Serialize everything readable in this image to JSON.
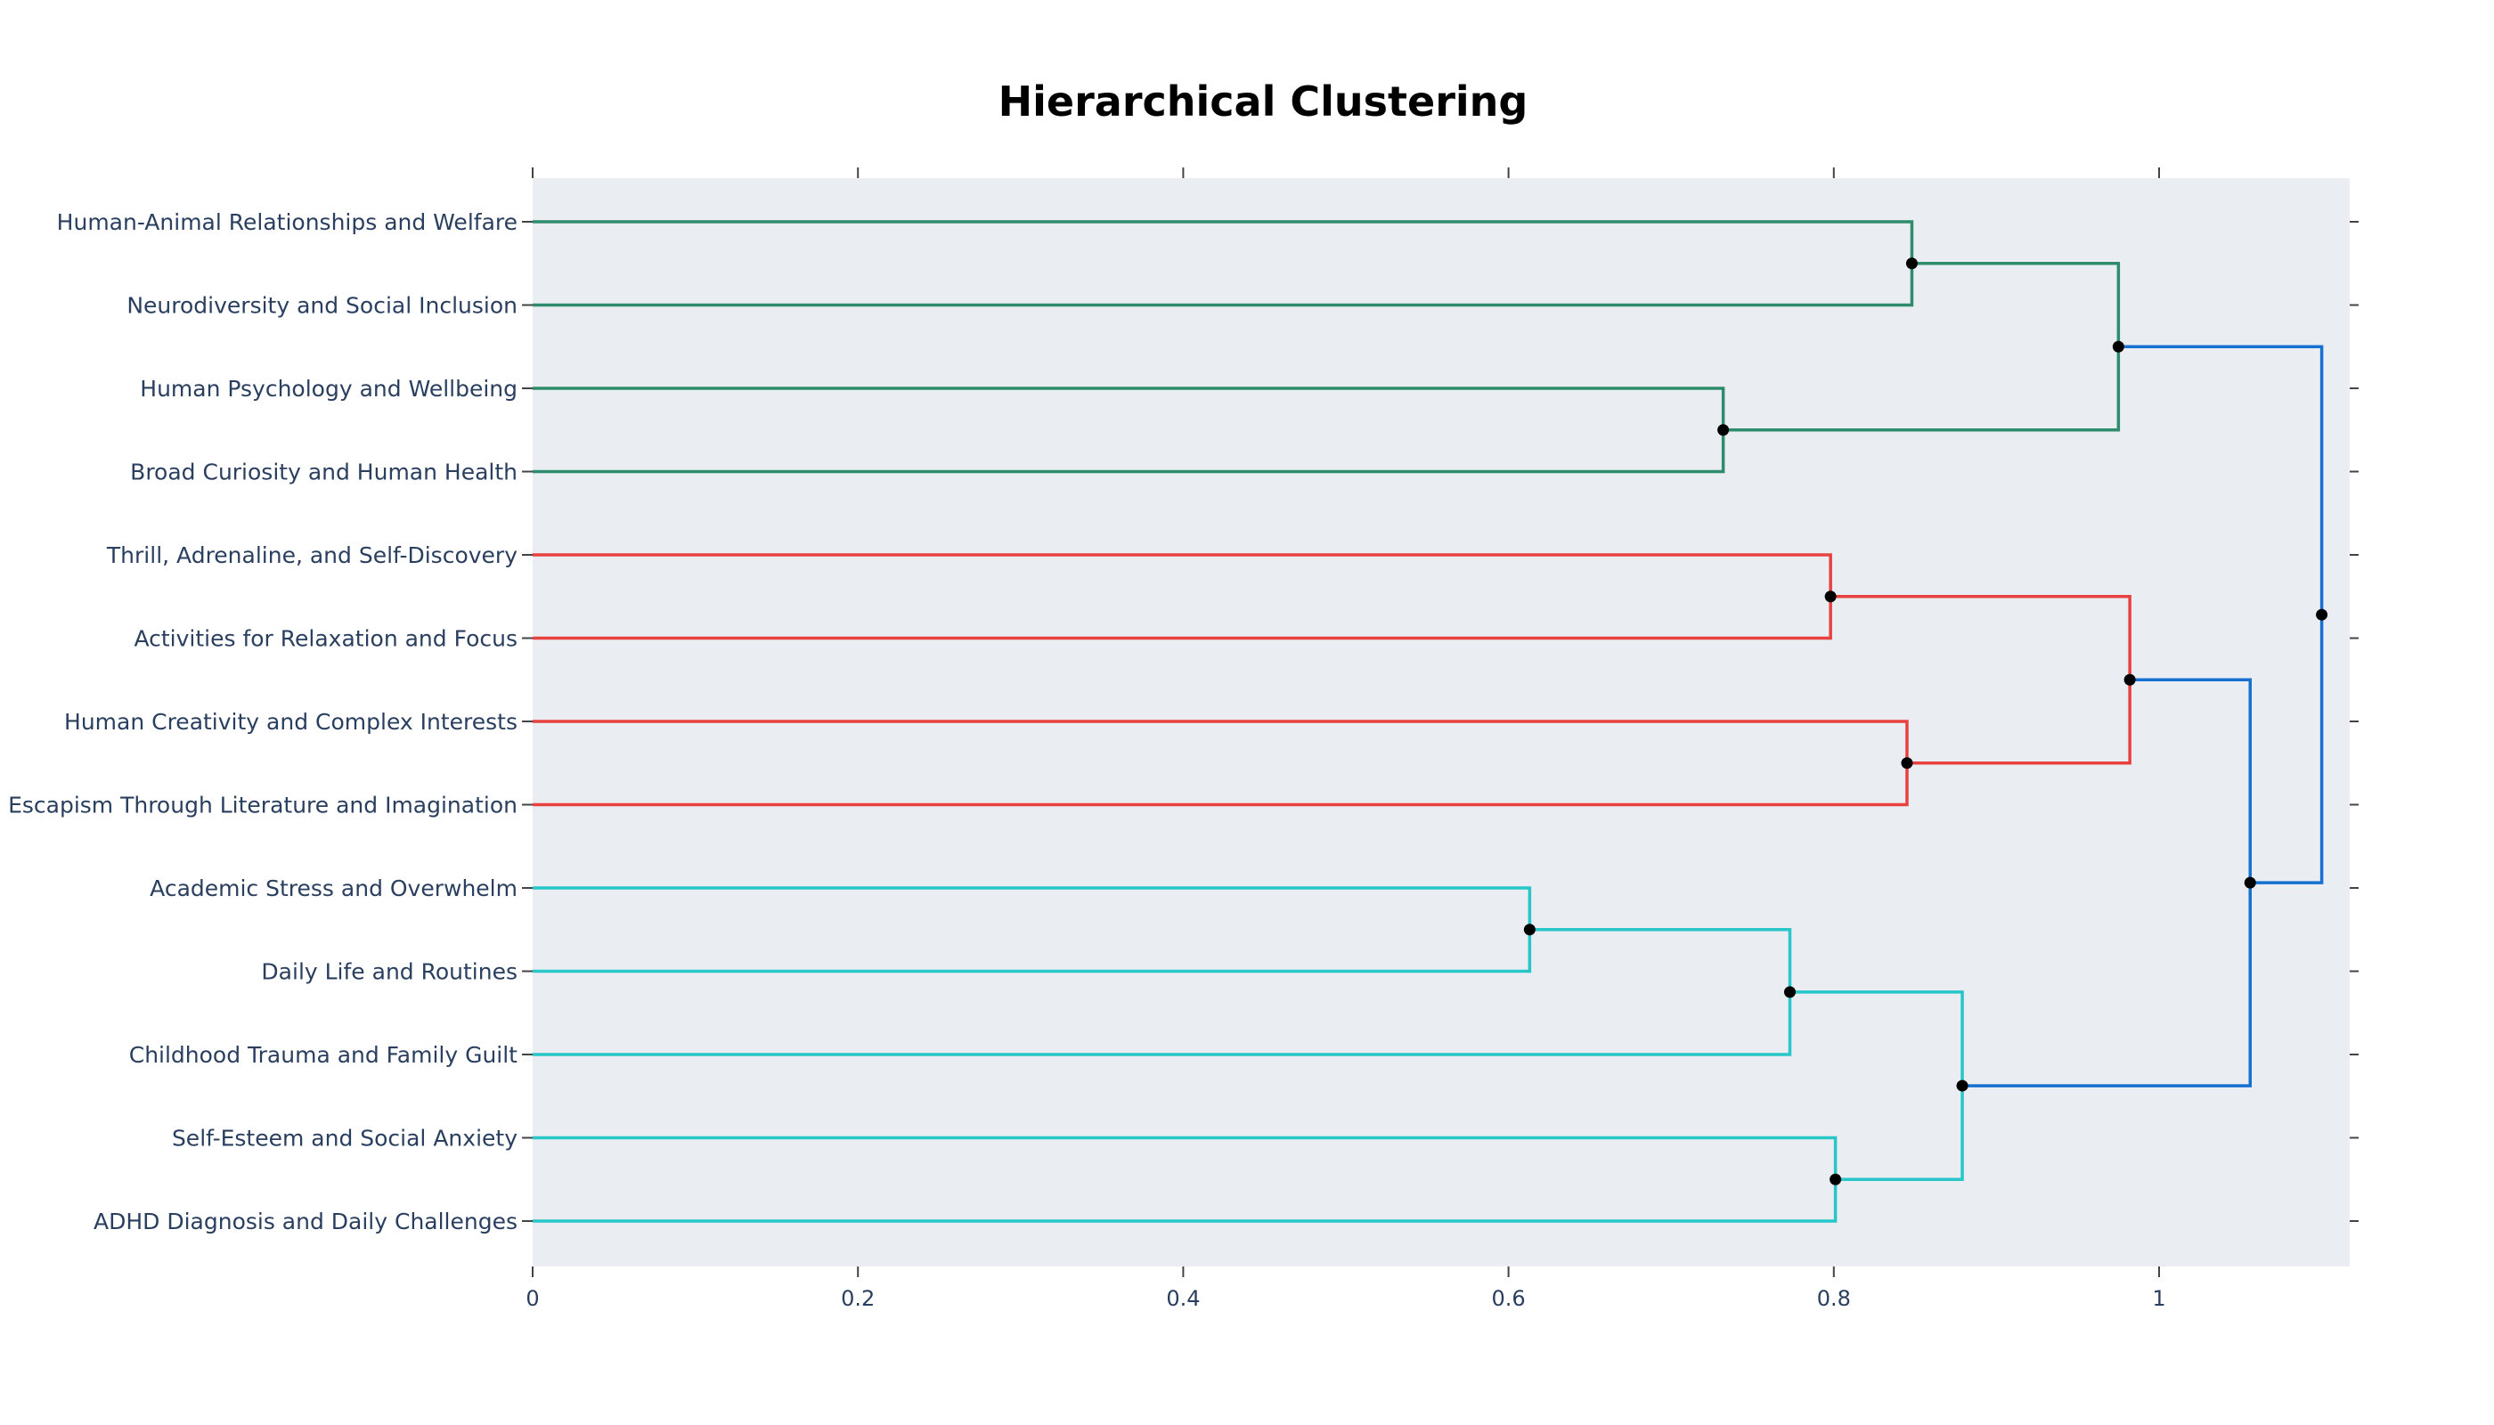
{
  "chart_data": {
    "type": "dendrogram",
    "title": "Hierarchical Clustering",
    "xlabel": "",
    "ylabel": "",
    "orientation": "horizontal",
    "x_range": [
      0,
      1.12
    ],
    "x_ticks": [
      {
        "value": 0,
        "label": "0"
      },
      {
        "value": 0.2,
        "label": "0.2"
      },
      {
        "value": 0.4,
        "label": "0.4"
      },
      {
        "value": 0.6,
        "label": "0.6"
      },
      {
        "value": 0.8,
        "label": "0.8"
      },
      {
        "value": 1,
        "label": "1"
      }
    ],
    "background_color": "#eaeef2",
    "leaves": [
      "Human-Animal Relationships and Welfare",
      "Neurodiversity and Social Inclusion",
      "Human Psychology and Wellbeing",
      "Broad Curiosity and Human Health",
      "Thrill, Adrenaline, and Self-Discovery",
      "Activities for Relaxation and Focus",
      "Human Creativity and Complex Interests",
      "Escapism Through Literature and Imagination",
      "Academic Stress and Overwhelm",
      "Daily Life and Routines",
      "Childhood Trauma and Family Guilt",
      "Self-Esteem and Social Anxiety",
      "ADHD Diagnosis and Daily Challenges"
    ],
    "clusters": [
      {
        "name": "green",
        "color": "#2e8b6b"
      },
      {
        "name": "red",
        "color": "#e8413f"
      },
      {
        "name": "cyan",
        "color": "#27c6c8"
      },
      {
        "name": "root",
        "color": "#1570cf"
      }
    ],
    "merges": [
      {
        "id": "n0",
        "left": 0,
        "right": 1,
        "distance": 0.848,
        "color": "#2e8b6b"
      },
      {
        "id": "n1",
        "left": 2,
        "right": 3,
        "distance": 0.732,
        "color": "#2e8b6b"
      },
      {
        "id": "n2",
        "left": "n0",
        "right": "n1",
        "distance": 0.975,
        "color": "#2e8b6b"
      },
      {
        "id": "n3",
        "left": 4,
        "right": 5,
        "distance": 0.798,
        "color": "#e8413f"
      },
      {
        "id": "n4",
        "left": 6,
        "right": 7,
        "distance": 0.845,
        "color": "#e8413f"
      },
      {
        "id": "n5",
        "left": "n3",
        "right": "n4",
        "distance": 0.982,
        "color": "#e8413f"
      },
      {
        "id": "n6",
        "left": 8,
        "right": 9,
        "distance": 0.613,
        "color": "#27c6c8"
      },
      {
        "id": "n7",
        "left": "n6",
        "right": 10,
        "distance": 0.773,
        "color": "#27c6c8"
      },
      {
        "id": "n8",
        "left": 11,
        "right": 12,
        "distance": 0.801,
        "color": "#27c6c8"
      },
      {
        "id": "n9",
        "left": "n7",
        "right": "n8",
        "distance": 0.879,
        "color": "#27c6c8"
      },
      {
        "id": "n10",
        "left": "n5",
        "right": "n9",
        "distance": 1.056,
        "color": "#1570cf"
      },
      {
        "id": "n11",
        "left": "n2",
        "right": "n10",
        "distance": 1.1,
        "color": "#1570cf"
      }
    ]
  }
}
